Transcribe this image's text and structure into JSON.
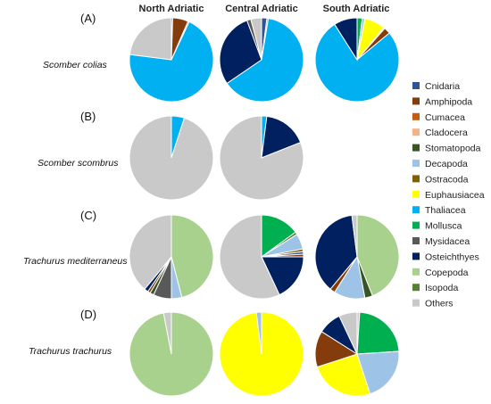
{
  "chart_data": {
    "type": "pie",
    "column_titles": [
      "North Adriatic",
      "Central Adriatic",
      "South Adriatic"
    ],
    "rows": [
      {
        "label": "(A)",
        "species": "Scomber colias"
      },
      {
        "label": "(B)",
        "species": "Scomber scombrus"
      },
      {
        "label": "(C)",
        "species": "Trachurus mediterraneus"
      },
      {
        "label": "(D)",
        "species": "Trachurus trachurus"
      }
    ],
    "categories": [
      "Cnidaria",
      "Amphipoda",
      "Cumacea",
      "Cladocera",
      "Stomatopoda",
      "Decapoda",
      "Ostracoda",
      "Euphausiacea",
      "Thaliacea",
      "Mollusca",
      "Mysidacea",
      "Osteichthyes",
      "Copepoda",
      "Isopoda",
      "Others"
    ],
    "colors": {
      "Cnidaria": "#2e5597",
      "Amphipoda": "#843c0c",
      "Cumacea": "#c55a11",
      "Cladocera": "#f4b183",
      "Stomatopoda": "#375623",
      "Decapoda": "#9dc3e6",
      "Ostracoda": "#7f6000",
      "Euphausiacea": "#ffff00",
      "Thaliacea": "#00b0f0",
      "Mollusca": "#00b050",
      "Mysidacea": "#595959",
      "Osteichthyes": "#002060",
      "Copepoda": "#a9d18e",
      "Isopoda": "#548235",
      "Others": "#c9c9c9"
    },
    "pies": [
      {
        "row": 0,
        "col": 0,
        "slices": [
          {
            "category": "Cnidaria",
            "value": 0.5
          },
          {
            "category": "Amphipoda",
            "value": 6
          },
          {
            "category": "Cumacea",
            "value": 0.5
          },
          {
            "category": "Thaliacea",
            "value": 70
          },
          {
            "category": "Others",
            "value": 23
          }
        ]
      },
      {
        "row": 0,
        "col": 1,
        "slices": [
          {
            "category": "Cnidaria",
            "value": 2
          },
          {
            "category": "Cumacea",
            "value": 0.5
          },
          {
            "category": "Thaliacea",
            "value": 61
          },
          {
            "category": "Osteichthyes",
            "value": 28
          },
          {
            "category": "Mysidacea",
            "value": 1.5
          },
          {
            "category": "Others",
            "value": 4
          }
        ]
      },
      {
        "row": 0,
        "col": 2,
        "slices": [
          {
            "category": "Mollusca",
            "value": 2
          },
          {
            "category": "Decapoda",
            "value": 1
          },
          {
            "category": "Euphausiacea",
            "value": 8
          },
          {
            "category": "Cladocera",
            "value": 0.5
          },
          {
            "category": "Amphipoda",
            "value": 2.5
          },
          {
            "category": "Thaliacea",
            "value": 77
          },
          {
            "category": "Osteichthyes",
            "value": 9
          }
        ]
      },
      {
        "row": 1,
        "col": 0,
        "slices": [
          {
            "category": "Thaliacea",
            "value": 5
          },
          {
            "category": "Others",
            "value": 95
          }
        ]
      },
      {
        "row": 1,
        "col": 1,
        "slices": [
          {
            "category": "Thaliacea",
            "value": 2
          },
          {
            "category": "Osteichthyes",
            "value": 17
          },
          {
            "category": "Others",
            "value": 81
          }
        ]
      },
      {
        "row": 2,
        "col": 0,
        "slices": [
          {
            "category": "Copepoda",
            "value": 46
          },
          {
            "category": "Decapoda",
            "value": 4
          },
          {
            "category": "Mysidacea",
            "value": 7
          },
          {
            "category": "Stomatopoda",
            "value": 1.5
          },
          {
            "category": "Amphipoda",
            "value": 1
          },
          {
            "category": "Osteichthyes",
            "value": 1.5
          },
          {
            "category": "Others",
            "value": 39
          }
        ]
      },
      {
        "row": 2,
        "col": 1,
        "slices": [
          {
            "category": "Mollusca",
            "value": 15
          },
          {
            "category": "Isopoda",
            "value": 1
          },
          {
            "category": "Decapoda",
            "value": 6
          },
          {
            "category": "Ostracoda",
            "value": 1
          },
          {
            "category": "Cnidaria",
            "value": 1
          },
          {
            "category": "Amphipoda",
            "value": 1
          },
          {
            "category": "Osteichthyes",
            "value": 18
          },
          {
            "category": "Others",
            "value": 57
          }
        ]
      },
      {
        "row": 2,
        "col": 2,
        "slices": [
          {
            "category": "Copepoda",
            "value": 44
          },
          {
            "category": "Stomatopoda",
            "value": 3
          },
          {
            "category": "Decapoda",
            "value": 12
          },
          {
            "category": "Amphipoda",
            "value": 2
          },
          {
            "category": "Osteichthyes",
            "value": 37
          },
          {
            "category": "Others",
            "value": 2
          }
        ]
      },
      {
        "row": 3,
        "col": 0,
        "slices": [
          {
            "category": "Copepoda",
            "value": 97
          },
          {
            "category": "Others",
            "value": 3
          }
        ]
      },
      {
        "row": 3,
        "col": 1,
        "slices": [
          {
            "category": "Euphausiacea",
            "value": 98
          },
          {
            "category": "Decapoda",
            "value": 2
          }
        ]
      },
      {
        "row": 3,
        "col": 2,
        "slices": [
          {
            "category": "Others",
            "value": 1
          },
          {
            "category": "Mollusca",
            "value": 23
          },
          {
            "category": "Decapoda",
            "value": 21
          },
          {
            "category": "Euphausiacea",
            "value": 25
          },
          {
            "category": "Amphipoda",
            "value": 14
          },
          {
            "category": "Osteichthyes",
            "value": 9
          },
          {
            "category": "Others",
            "value": 7
          }
        ]
      }
    ]
  }
}
